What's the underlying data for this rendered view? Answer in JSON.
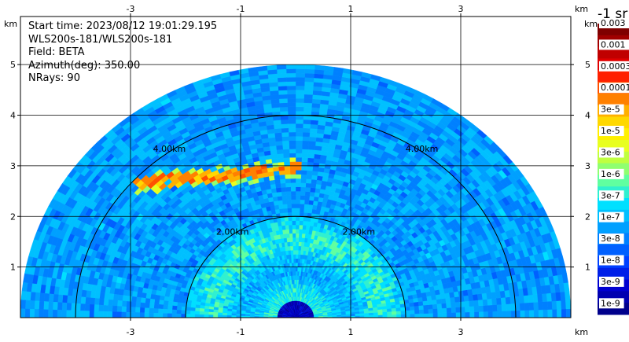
{
  "info": {
    "start_time": "Start time: 2023/08/12 19:01:29.195",
    "instrument": "WLS200s-181/WLS200s-181",
    "field": "Field: BETA",
    "azimuth": "Azimuth(deg): 350.00",
    "nrays": "NRays: 90"
  },
  "chart_data": {
    "type": "heatmap",
    "projection": "polar RHI half-disk",
    "x_axis": {
      "unit": "km",
      "range": [
        -5.0,
        5.0
      ],
      "ticks": [
        -3,
        -1,
        1,
        3
      ]
    },
    "y_axis": {
      "unit": "km",
      "range": [
        0,
        5.95
      ],
      "ticks": [
        1,
        2,
        3,
        4,
        5
      ]
    },
    "max_range_km": 5.0,
    "range_rings_km": [
      2.0,
      4.0
    ],
    "range_ring_labels": [
      "2.00km",
      "4.00km"
    ],
    "grid": true,
    "colorbar": {
      "unit": "-1 sr",
      "labels": [
        "0.003",
        "0.001",
        "0.0003",
        "0.0001",
        "3e-5",
        "1e-5",
        "3e-6",
        "1e-6",
        "3e-7",
        "1e-7",
        "3e-8",
        "1e-8",
        "3e-9",
        "1e-9"
      ],
      "colors": [
        "#7f0000",
        "#a00000",
        "#c00000",
        "#e00000",
        "#ff2000",
        "#ff5000",
        "#ff8000",
        "#ffb000",
        "#ffd800",
        "#fff000",
        "#e8ff20",
        "#c0ff40",
        "#90ff70",
        "#60ffa0",
        "#30f0d0",
        "#00e0ff",
        "#00c0ff",
        "#00a0ff",
        "#0080ff",
        "#0060ff",
        "#0040ff",
        "#0020e8",
        "#0000d0",
        "#0000b0",
        "#00008c"
      ]
    },
    "aerosol_layer": {
      "x_km": [
        -2.9,
        0.1
      ],
      "y_km": [
        2.65,
        2.95
      ],
      "value": "3e-5"
    }
  }
}
